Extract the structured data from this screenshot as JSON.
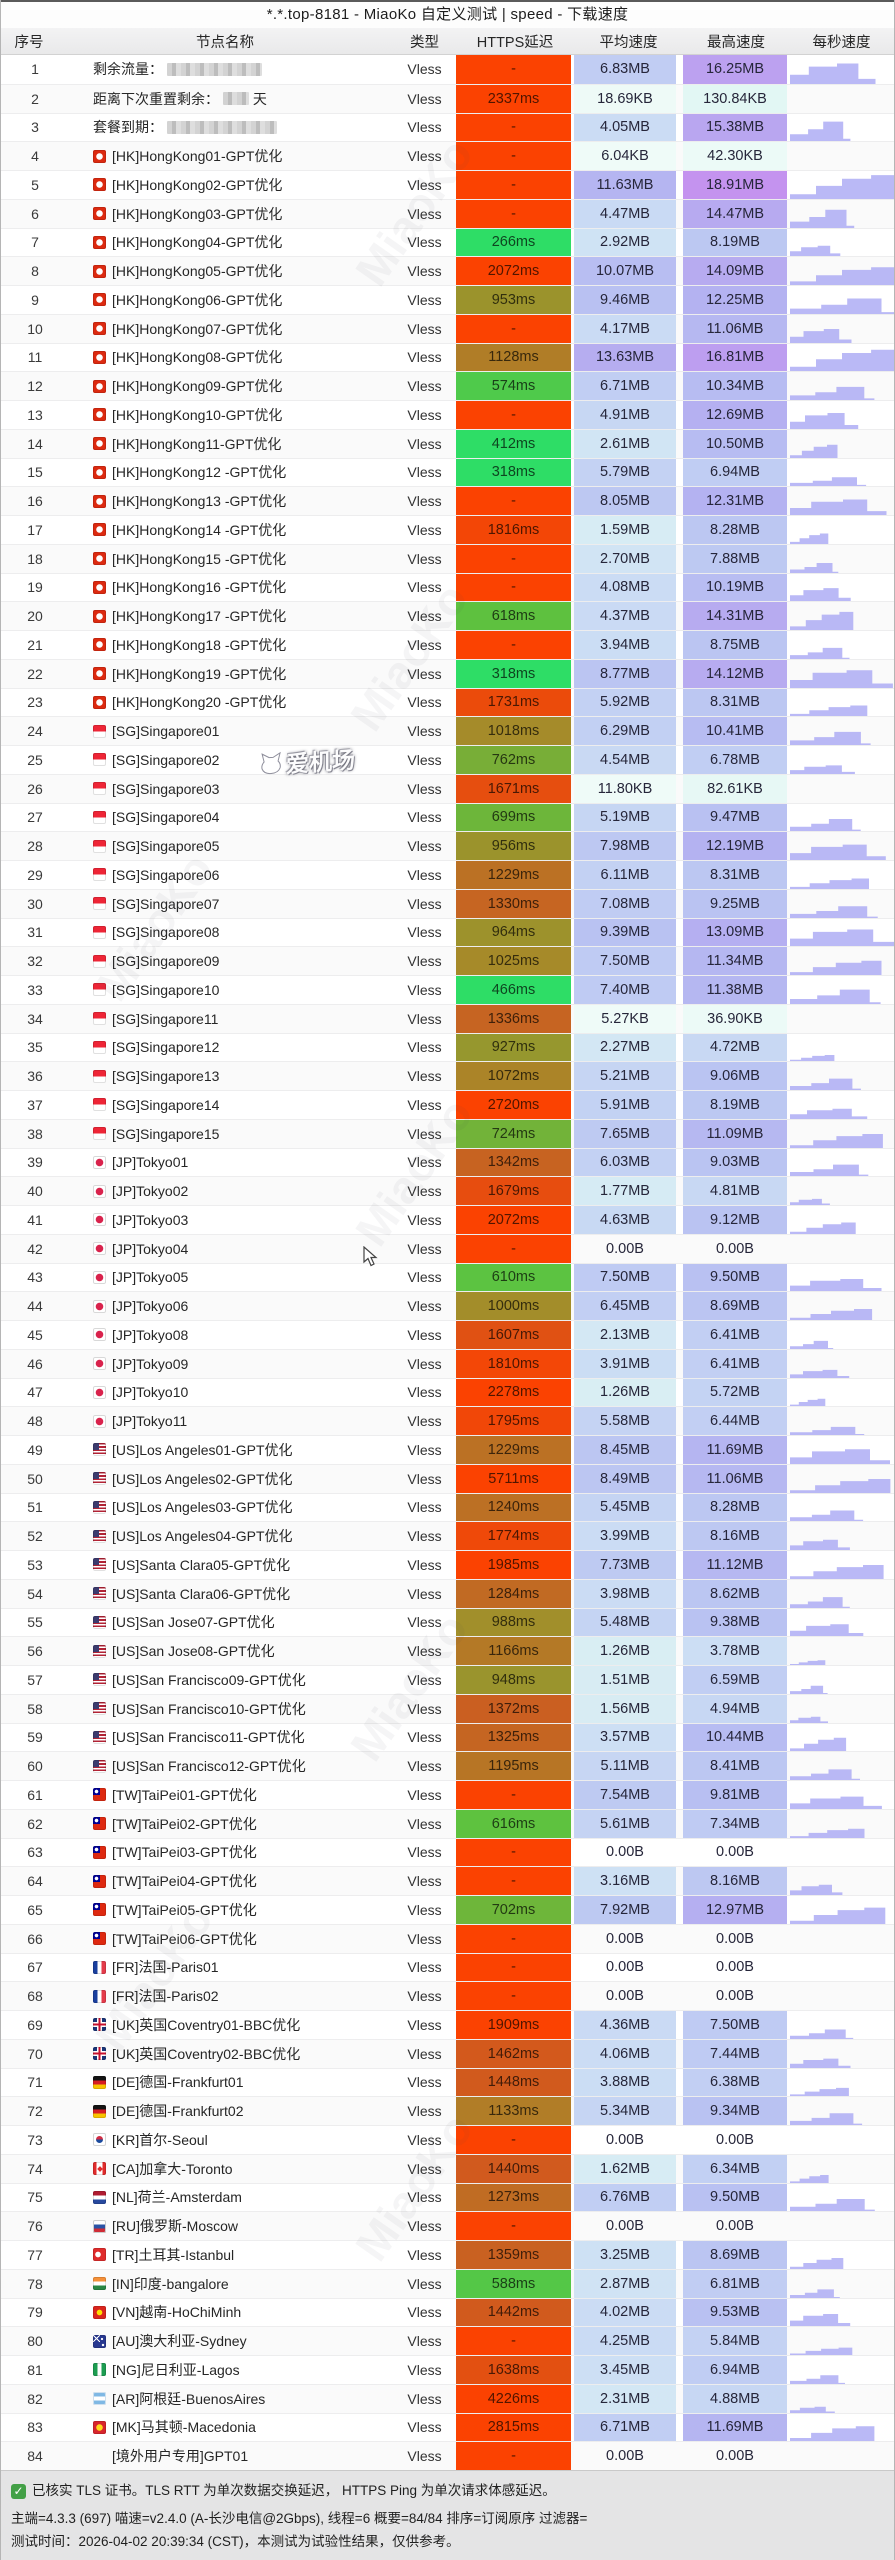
{
  "title": "*.*.top-8181 - MiaoKo 自定义测试 | speed - 下载速度",
  "columns": {
    "no": "序号",
    "name": "节点名称",
    "type": "类型",
    "latency": "HTTPS延迟",
    "avg": "平均速度",
    "max": "最高速度",
    "per_sec": "每秒速度"
  },
  "watermark": {
    "brand": "MiaoKo",
    "badge": "爱机场"
  },
  "footer": {
    "line1": "已核实 TLS 证书。TLS RTT 为单次数据交换延迟， HTTPS Ping 为单次请求体感延迟。",
    "line2": "主端=4.3.3 (697) 喵速=v2.4.0 (A-长沙电信@2Gbps), 线程=6 概要=84/84 排序=订阅原序 过滤器=",
    "line3": "测试时间：2026-04-02 20:39:34 (CST)，本测试为试验性结果，仅供参考。"
  },
  "rows": [
    [
      1,
      "",
      "剩余流量：",
      "Vless",
      "-",
      "6.83MB",
      "16.25MB",
      95,
      ""
    ],
    [
      2,
      "",
      "距离下次重置剩余：",
      "Vless",
      "2337ms",
      "18.69KB",
      "130.84KB",
      26,
      "天"
    ],
    [
      3,
      "",
      "套餐到期：",
      "Vless",
      "-",
      "4.05MB",
      "15.38MB",
      110,
      ""
    ],
    [
      4,
      "hk",
      "[HK]HongKong01-GPT优化",
      "Vless",
      "-",
      "6.04KB",
      "42.30KB",
      0,
      ""
    ],
    [
      5,
      "hk",
      "[HK]HongKong02-GPT优化",
      "Vless",
      "-",
      "11.63MB",
      "18.91MB",
      0,
      ""
    ],
    [
      6,
      "hk",
      "[HK]HongKong03-GPT优化",
      "Vless",
      "-",
      "4.47MB",
      "14.47MB",
      0,
      ""
    ],
    [
      7,
      "hk",
      "[HK]HongKong04-GPT优化",
      "Vless",
      "266ms",
      "2.92MB",
      "8.19MB",
      0,
      ""
    ],
    [
      8,
      "hk",
      "[HK]HongKong05-GPT优化",
      "Vless",
      "2072ms",
      "10.07MB",
      "14.09MB",
      0,
      ""
    ],
    [
      9,
      "hk",
      "[HK]HongKong06-GPT优化",
      "Vless",
      "953ms",
      "9.46MB",
      "12.25MB",
      0,
      ""
    ],
    [
      10,
      "hk",
      "[HK]HongKong07-GPT优化",
      "Vless",
      "-",
      "4.17MB",
      "11.06MB",
      0,
      ""
    ],
    [
      11,
      "hk",
      "[HK]HongKong08-GPT优化",
      "Vless",
      "1128ms",
      "13.63MB",
      "16.81MB",
      0,
      ""
    ],
    [
      12,
      "hk",
      "[HK]HongKong09-GPT优化",
      "Vless",
      "574ms",
      "6.71MB",
      "10.34MB",
      0,
      ""
    ],
    [
      13,
      "hk",
      "[HK]HongKong10-GPT优化",
      "Vless",
      "-",
      "4.91MB",
      "12.69MB",
      0,
      ""
    ],
    [
      14,
      "hk",
      "[HK]HongKong11-GPT优化",
      "Vless",
      "412ms",
      "2.61MB",
      "10.50MB",
      0,
      ""
    ],
    [
      15,
      "hk",
      "[HK]HongKong12 -GPT优化",
      "Vless",
      "318ms",
      "5.79MB",
      "6.94MB",
      0,
      ""
    ],
    [
      16,
      "hk",
      "[HK]HongKong13 -GPT优化",
      "Vless",
      "-",
      "8.05MB",
      "12.31MB",
      0,
      ""
    ],
    [
      17,
      "hk",
      "[HK]HongKong14 -GPT优化",
      "Vless",
      "1816ms",
      "1.59MB",
      "8.28MB",
      0,
      ""
    ],
    [
      18,
      "hk",
      "[HK]HongKong15 -GPT优化",
      "Vless",
      "-",
      "2.70MB",
      "7.88MB",
      0,
      ""
    ],
    [
      19,
      "hk",
      "[HK]HongKong16 -GPT优化",
      "Vless",
      "-",
      "4.08MB",
      "10.19MB",
      0,
      ""
    ],
    [
      20,
      "hk",
      "[HK]HongKong17 -GPT优化",
      "Vless",
      "618ms",
      "4.37MB",
      "14.31MB",
      0,
      ""
    ],
    [
      21,
      "hk",
      "[HK]HongKong18 -GPT优化",
      "Vless",
      "-",
      "3.94MB",
      "8.75MB",
      0,
      ""
    ],
    [
      22,
      "hk",
      "[HK]HongKong19 -GPT优化",
      "Vless",
      "318ms",
      "8.77MB",
      "14.12MB",
      0,
      ""
    ],
    [
      23,
      "hk",
      "[HK]HongKong20 -GPT优化",
      "Vless",
      "1731ms",
      "5.92MB",
      "8.31MB",
      0,
      ""
    ],
    [
      24,
      "sg",
      "[SG]Singapore01",
      "Vless",
      "1018ms",
      "6.29MB",
      "10.41MB",
      0,
      ""
    ],
    [
      25,
      "sg",
      "[SG]Singapore02",
      "Vless",
      "762ms",
      "4.54MB",
      "6.78MB",
      0,
      ""
    ],
    [
      26,
      "sg",
      "[SG]Singapore03",
      "Vless",
      "1671ms",
      "11.80KB",
      "82.61KB",
      0,
      ""
    ],
    [
      27,
      "sg",
      "[SG]Singapore04",
      "Vless",
      "699ms",
      "5.19MB",
      "9.47MB",
      0,
      ""
    ],
    [
      28,
      "sg",
      "[SG]Singapore05",
      "Vless",
      "956ms",
      "7.98MB",
      "12.19MB",
      0,
      ""
    ],
    [
      29,
      "sg",
      "[SG]Singapore06",
      "Vless",
      "1229ms",
      "6.11MB",
      "8.31MB",
      0,
      ""
    ],
    [
      30,
      "sg",
      "[SG]Singapore07",
      "Vless",
      "1330ms",
      "7.08MB",
      "9.25MB",
      0,
      ""
    ],
    [
      31,
      "sg",
      "[SG]Singapore08",
      "Vless",
      "964ms",
      "9.39MB",
      "13.09MB",
      0,
      ""
    ],
    [
      32,
      "sg",
      "[SG]Singapore09",
      "Vless",
      "1025ms",
      "7.50MB",
      "11.34MB",
      0,
      ""
    ],
    [
      33,
      "sg",
      "[SG]Singapore10",
      "Vless",
      "466ms",
      "7.40MB",
      "11.38MB",
      0,
      ""
    ],
    [
      34,
      "sg",
      "[SG]Singapore11",
      "Vless",
      "1336ms",
      "5.27KB",
      "36.90KB",
      0,
      ""
    ],
    [
      35,
      "sg",
      "[SG]Singapore12",
      "Vless",
      "927ms",
      "2.27MB",
      "4.72MB",
      0,
      ""
    ],
    [
      36,
      "sg",
      "[SG]Singapore13",
      "Vless",
      "1072ms",
      "5.21MB",
      "9.06MB",
      0,
      ""
    ],
    [
      37,
      "sg",
      "[SG]Singapore14",
      "Vless",
      "2720ms",
      "5.91MB",
      "8.19MB",
      0,
      ""
    ],
    [
      38,
      "sg",
      "[SG]Singapore15",
      "Vless",
      "724ms",
      "7.65MB",
      "11.09MB",
      0,
      ""
    ],
    [
      39,
      "jp",
      "[JP]Tokyo01",
      "Vless",
      "1342ms",
      "6.03MB",
      "9.03MB",
      0,
      ""
    ],
    [
      40,
      "jp",
      "[JP]Tokyo02",
      "Vless",
      "1679ms",
      "1.77MB",
      "4.81MB",
      0,
      ""
    ],
    [
      41,
      "jp",
      "[JP]Tokyo03",
      "Vless",
      "2072ms",
      "4.63MB",
      "9.12MB",
      0,
      ""
    ],
    [
      42,
      "jp",
      "[JP]Tokyo04",
      "Vless",
      "-",
      "0.00B",
      "0.00B",
      0,
      ""
    ],
    [
      43,
      "jp",
      "[JP]Tokyo05",
      "Vless",
      "610ms",
      "7.50MB",
      "9.50MB",
      0,
      ""
    ],
    [
      44,
      "jp",
      "[JP]Tokyo06",
      "Vless",
      "1000ms",
      "6.45MB",
      "8.69MB",
      0,
      ""
    ],
    [
      45,
      "jp",
      "[JP]Tokyo08",
      "Vless",
      "1607ms",
      "2.13MB",
      "6.41MB",
      0,
      ""
    ],
    [
      46,
      "jp",
      "[JP]Tokyo09",
      "Vless",
      "1810ms",
      "3.91MB",
      "6.41MB",
      0,
      ""
    ],
    [
      47,
      "jp",
      "[JP]Tokyo10",
      "Vless",
      "2278ms",
      "1.26MB",
      "5.72MB",
      0,
      ""
    ],
    [
      48,
      "jp",
      "[JP]Tokyo11",
      "Vless",
      "1795ms",
      "5.58MB",
      "6.44MB",
      0,
      ""
    ],
    [
      49,
      "us",
      "[US]Los Angeles01-GPT优化",
      "Vless",
      "1229ms",
      "8.45MB",
      "11.69MB",
      0,
      ""
    ],
    [
      50,
      "us",
      "[US]Los Angeles02-GPT优化",
      "Vless",
      "5711ms",
      "8.49MB",
      "11.06MB",
      0,
      ""
    ],
    [
      51,
      "us",
      "[US]Los Angeles03-GPT优化",
      "Vless",
      "1240ms",
      "5.45MB",
      "8.28MB",
      0,
      ""
    ],
    [
      52,
      "us",
      "[US]Los Angeles04-GPT优化",
      "Vless",
      "1774ms",
      "3.99MB",
      "8.16MB",
      0,
      ""
    ],
    [
      53,
      "us",
      "[US]Santa Clara05-GPT优化",
      "Vless",
      "1985ms",
      "7.73MB",
      "11.12MB",
      0,
      ""
    ],
    [
      54,
      "us",
      "[US]Santa Clara06-GPT优化",
      "Vless",
      "1284ms",
      "3.98MB",
      "8.62MB",
      0,
      ""
    ],
    [
      55,
      "us",
      "[US]San Jose07-GPT优化",
      "Vless",
      "988ms",
      "5.48MB",
      "9.38MB",
      0,
      ""
    ],
    [
      56,
      "us",
      "[US]San Jose08-GPT优化",
      "Vless",
      "1166ms",
      "1.26MB",
      "3.78MB",
      0,
      ""
    ],
    [
      57,
      "us",
      "[US]San Francisco09-GPT优化",
      "Vless",
      "948ms",
      "1.51MB",
      "6.59MB",
      0,
      ""
    ],
    [
      58,
      "us",
      "[US]San Francisco10-GPT优化",
      "Vless",
      "1372ms",
      "1.56MB",
      "4.94MB",
      0,
      ""
    ],
    [
      59,
      "us",
      "[US]San Francisco11-GPT优化",
      "Vless",
      "1325ms",
      "3.57MB",
      "10.44MB",
      0,
      ""
    ],
    [
      60,
      "us",
      "[US]San Francisco12-GPT优化",
      "Vless",
      "1195ms",
      "5.11MB",
      "8.41MB",
      0,
      ""
    ],
    [
      61,
      "tw",
      "[TW]TaiPei01-GPT优化",
      "Vless",
      "-",
      "7.54MB",
      "9.81MB",
      0,
      ""
    ],
    [
      62,
      "tw",
      "[TW]TaiPei02-GPT优化",
      "Vless",
      "616ms",
      "5.61MB",
      "7.34MB",
      0,
      ""
    ],
    [
      63,
      "tw",
      "[TW]TaiPei03-GPT优化",
      "Vless",
      "-",
      "0.00B",
      "0.00B",
      0,
      ""
    ],
    [
      64,
      "tw",
      "[TW]TaiPei04-GPT优化",
      "Vless",
      "-",
      "3.16MB",
      "8.16MB",
      0,
      ""
    ],
    [
      65,
      "tw",
      "[TW]TaiPei05-GPT优化",
      "Vless",
      "702ms",
      "7.92MB",
      "12.97MB",
      0,
      ""
    ],
    [
      66,
      "tw",
      "[TW]TaiPei06-GPT优化",
      "Vless",
      "-",
      "0.00B",
      "0.00B",
      0,
      ""
    ],
    [
      67,
      "fr",
      "[FR]法国-Paris01",
      "Vless",
      "-",
      "0.00B",
      "0.00B",
      0,
      ""
    ],
    [
      68,
      "fr",
      "[FR]法国-Paris02",
      "Vless",
      "-",
      "0.00B",
      "0.00B",
      0,
      ""
    ],
    [
      69,
      "uk",
      "[UK]英国Coventry01-BBC优化",
      "Vless",
      "1909ms",
      "4.36MB",
      "7.50MB",
      0,
      ""
    ],
    [
      70,
      "uk",
      "[UK]英国Coventry02-BBC优化",
      "Vless",
      "1462ms",
      "4.06MB",
      "7.44MB",
      0,
      ""
    ],
    [
      71,
      "de",
      "[DE]德国-Frankfurt01",
      "Vless",
      "1448ms",
      "3.88MB",
      "6.38MB",
      0,
      ""
    ],
    [
      72,
      "de",
      "[DE]德国-Frankfurt02",
      "Vless",
      "1133ms",
      "5.34MB",
      "9.34MB",
      0,
      ""
    ],
    [
      73,
      "kr",
      "[KR]首尔-Seoul",
      "Vless",
      "-",
      "0.00B",
      "0.00B",
      0,
      ""
    ],
    [
      74,
      "ca",
      "[CA]加拿大-Toronto",
      "Vless",
      "1440ms",
      "1.62MB",
      "6.34MB",
      0,
      ""
    ],
    [
      75,
      "nl",
      "[NL]荷兰-Amsterdam",
      "Vless",
      "1273ms",
      "6.76MB",
      "9.50MB",
      0,
      ""
    ],
    [
      76,
      "ru",
      "[RU]俄罗斯-Moscow",
      "Vless",
      "-",
      "0.00B",
      "0.00B",
      0,
      ""
    ],
    [
      77,
      "tr",
      "[TR]土耳其-Istanbul",
      "Vless",
      "1359ms",
      "3.25MB",
      "8.69MB",
      0,
      ""
    ],
    [
      78,
      "in",
      "[IN]印度-bangalore",
      "Vless",
      "588ms",
      "2.87MB",
      "6.81MB",
      0,
      ""
    ],
    [
      79,
      "vn",
      "[VN]越南-HoChiMinh",
      "Vless",
      "1442ms",
      "4.02MB",
      "9.53MB",
      0,
      ""
    ],
    [
      80,
      "au",
      "[AU]澳大利亚-Sydney",
      "Vless",
      "-",
      "4.25MB",
      "5.84MB",
      0,
      ""
    ],
    [
      81,
      "ng",
      "[NG]尼日利亚-Lagos",
      "Vless",
      "1638ms",
      "3.45MB",
      "6.94MB",
      0,
      ""
    ],
    [
      82,
      "ar",
      "[AR]阿根廷-BuenosAires",
      "Vless",
      "4226ms",
      "2.31MB",
      "4.88MB",
      0,
      ""
    ],
    [
      83,
      "mk",
      "[MK]马其顿-Macedonia",
      "Vless",
      "2815ms",
      "6.71MB",
      "11.69MB",
      0,
      ""
    ],
    [
      84,
      "",
      "[境外用户专用]GPT01",
      "Vless",
      "-",
      "0.00B",
      "0.00B",
      0,
      ""
    ]
  ]
}
